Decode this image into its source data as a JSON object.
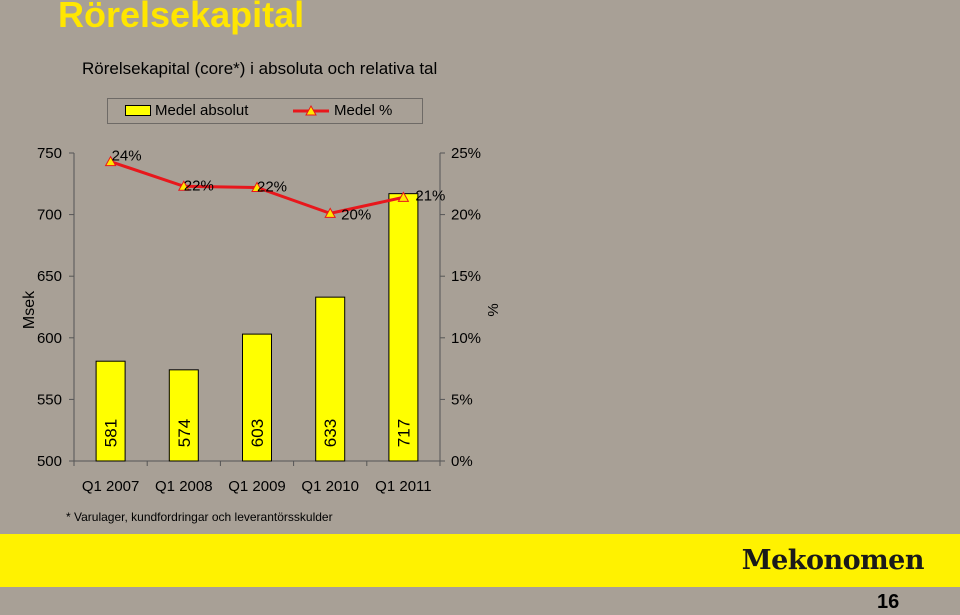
{
  "page": {
    "title": "Rörelsekapital",
    "footnote": "* Varulager, kundfordringar och leverantörsskulder",
    "logo": "Mekonomen",
    "page_number": "16"
  },
  "colors": {
    "bar": "#ffff00",
    "line": "#e8171c",
    "marker_fill": "#ffe600",
    "background": "#a8a096",
    "band": "#fff200"
  },
  "chart_data": {
    "type": "bar",
    "title": "Rörelsekapital (core*) i absoluta och relativa tal",
    "categories": [
      "Q1 2007",
      "Q1 2008",
      "Q1 2009",
      "Q1 2010",
      "Q1 2011"
    ],
    "ylabel": "Msek",
    "y2label": "%",
    "ylim": [
      500,
      750
    ],
    "y2lim": [
      0,
      25
    ],
    "yticks": [
      "500",
      "550",
      "600",
      "650",
      "700",
      "750"
    ],
    "y2ticks": [
      "0%",
      "5%",
      "10%",
      "15%",
      "20%",
      "25%"
    ],
    "legend": [
      "Medel absolut",
      "Medel %"
    ],
    "legend_position": "top",
    "grid": false,
    "series": [
      {
        "name": "Medel absolut",
        "type": "bar",
        "values": [
          581,
          574,
          603,
          633,
          717
        ],
        "labels": [
          "581",
          "574",
          "603",
          "633",
          "717"
        ]
      },
      {
        "name": "Medel %",
        "type": "line",
        "axis": "right",
        "values": [
          24.3,
          22.3,
          22.2,
          20.1,
          21.4
        ],
        "labels": [
          "24%",
          "22%",
          "22%",
          "20%",
          "21%"
        ]
      }
    ]
  }
}
